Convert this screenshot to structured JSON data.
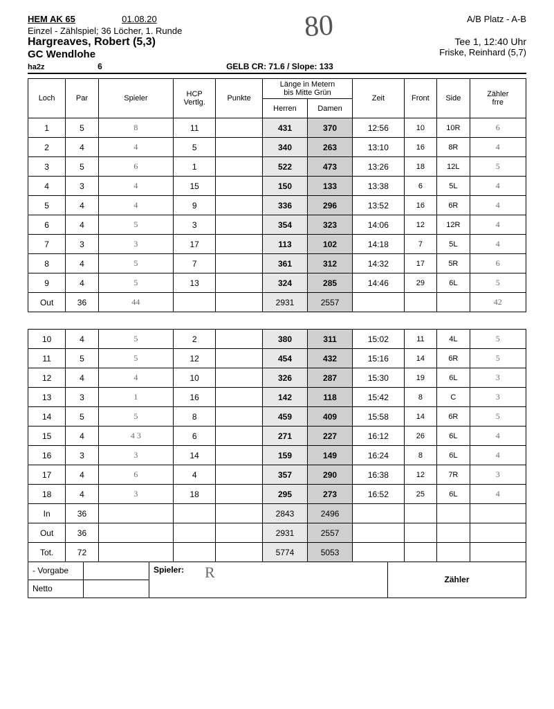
{
  "header": {
    "event": "HEM AK 65",
    "date": "01.08.20",
    "format": "Einzel - Zählspiel; 36 Löcher, 1. Runde",
    "course_label": "A/B Platz - A-B",
    "player": "Hargreaves, Robert (5,3)",
    "club": "GC Wendlohe",
    "tee_time": "Tee 1, 12:40 Uhr",
    "marker": "Friske, Reinhard (5,7)",
    "code": "ha2z",
    "hcp_strokes": "6",
    "rating": "GELB CR: 71.6 / Slope: 133",
    "handwritten_total": "80"
  },
  "columns": {
    "loch": "Loch",
    "par": "Par",
    "spieler": "Spieler",
    "hcp": "HCP\nVertlg.",
    "punkte": "Punkte",
    "length_top": "Länge in Metern\nbis Mitte Grün",
    "herren": "Herren",
    "damen": "Damen",
    "zeit": "Zeit",
    "front": "Front",
    "side": "Side",
    "zahler": "Zähler\nfrre"
  },
  "front9": [
    {
      "loch": "1",
      "par": "5",
      "spieler": "8",
      "hcp": "11",
      "herren": "431",
      "damen": "370",
      "zeit": "12:56",
      "front": "10",
      "side": "10R",
      "zahler": "6"
    },
    {
      "loch": "2",
      "par": "4",
      "spieler": "4",
      "hcp": "5",
      "herren": "340",
      "damen": "263",
      "zeit": "13:10",
      "front": "16",
      "side": "8R",
      "zahler": "4"
    },
    {
      "loch": "3",
      "par": "5",
      "spieler": "6",
      "hcp": "1",
      "herren": "522",
      "damen": "473",
      "zeit": "13:26",
      "front": "18",
      "side": "12L",
      "zahler": "5"
    },
    {
      "loch": "4",
      "par": "3",
      "spieler": "4",
      "hcp": "15",
      "herren": "150",
      "damen": "133",
      "zeit": "13:38",
      "front": "6",
      "side": "5L",
      "zahler": "4"
    },
    {
      "loch": "5",
      "par": "4",
      "spieler": "4",
      "hcp": "9",
      "herren": "336",
      "damen": "296",
      "zeit": "13:52",
      "front": "16",
      "side": "6R",
      "zahler": "4"
    },
    {
      "loch": "6",
      "par": "4",
      "spieler": "5",
      "hcp": "3",
      "herren": "354",
      "damen": "323",
      "zeit": "14:06",
      "front": "12",
      "side": "12R",
      "zahler": "4"
    },
    {
      "loch": "7",
      "par": "3",
      "spieler": "3",
      "hcp": "17",
      "herren": "113",
      "damen": "102",
      "zeit": "14:18",
      "front": "7",
      "side": "5L",
      "zahler": "4"
    },
    {
      "loch": "8",
      "par": "4",
      "spieler": "5",
      "hcp": "7",
      "herren": "361",
      "damen": "312",
      "zeit": "14:32",
      "front": "17",
      "side": "5R",
      "zahler": "6"
    },
    {
      "loch": "9",
      "par": "4",
      "spieler": "5",
      "hcp": "13",
      "herren": "324",
      "damen": "285",
      "zeit": "14:46",
      "front": "29",
      "side": "6L",
      "zahler": "5"
    }
  ],
  "out": {
    "label": "Out",
    "par": "36",
    "spieler": "44",
    "herren": "2931",
    "damen": "2557",
    "zahler": "42"
  },
  "back9": [
    {
      "loch": "10",
      "par": "4",
      "spieler": "5",
      "hcp": "2",
      "herren": "380",
      "damen": "311",
      "zeit": "15:02",
      "front": "11",
      "side": "4L",
      "zahler": "5"
    },
    {
      "loch": "11",
      "par": "5",
      "spieler": "5",
      "hcp": "12",
      "herren": "454",
      "damen": "432",
      "zeit": "15:16",
      "front": "14",
      "side": "6R",
      "zahler": "5"
    },
    {
      "loch": "12",
      "par": "4",
      "spieler": "4",
      "hcp": "10",
      "herren": "326",
      "damen": "287",
      "zeit": "15:30",
      "front": "19",
      "side": "6L",
      "zahler": "3"
    },
    {
      "loch": "13",
      "par": "3",
      "spieler": "1",
      "hcp": "16",
      "herren": "142",
      "damen": "118",
      "zeit": "15:42",
      "front": "8",
      "side": "C",
      "zahler": "3"
    },
    {
      "loch": "14",
      "par": "5",
      "spieler": "5",
      "hcp": "8",
      "herren": "459",
      "damen": "409",
      "zeit": "15:58",
      "front": "14",
      "side": "6R",
      "zahler": "5"
    },
    {
      "loch": "15",
      "par": "4",
      "spieler": "4 3",
      "hcp": "6",
      "herren": "271",
      "damen": "227",
      "zeit": "16:12",
      "front": "26",
      "side": "6L",
      "zahler": "4"
    },
    {
      "loch": "16",
      "par": "3",
      "spieler": "3",
      "hcp": "14",
      "herren": "159",
      "damen": "149",
      "zeit": "16:24",
      "front": "8",
      "side": "6L",
      "zahler": "4"
    },
    {
      "loch": "17",
      "par": "4",
      "spieler": "6",
      "hcp": "4",
      "herren": "357",
      "damen": "290",
      "zeit": "16:38",
      "front": "12",
      "side": "7R",
      "zahler": "3"
    },
    {
      "loch": "18",
      "par": "4",
      "spieler": "3",
      "hcp": "18",
      "herren": "295",
      "damen": "273",
      "zeit": "16:52",
      "front": "25",
      "side": "6L",
      "zahler": "4"
    }
  ],
  "in": {
    "label": "In",
    "par": "36",
    "herren": "2843",
    "damen": "2496"
  },
  "out2": {
    "label": "Out",
    "par": "36",
    "herren": "2931",
    "damen": "2557"
  },
  "tot": {
    "label": "Tot.",
    "par": "72",
    "herren": "5774",
    "damen": "5053"
  },
  "footer": {
    "vorgabe": "- Vorgabe",
    "netto": "Netto",
    "spieler_label": "Spieler:",
    "zahler_label": "Zähler",
    "signature": "R"
  },
  "style": {
    "herren_bg": "#e8e8e8",
    "damen_bg": "#cfcfcf",
    "border_color": "#000000",
    "hw_color": "#6a6a6a"
  }
}
